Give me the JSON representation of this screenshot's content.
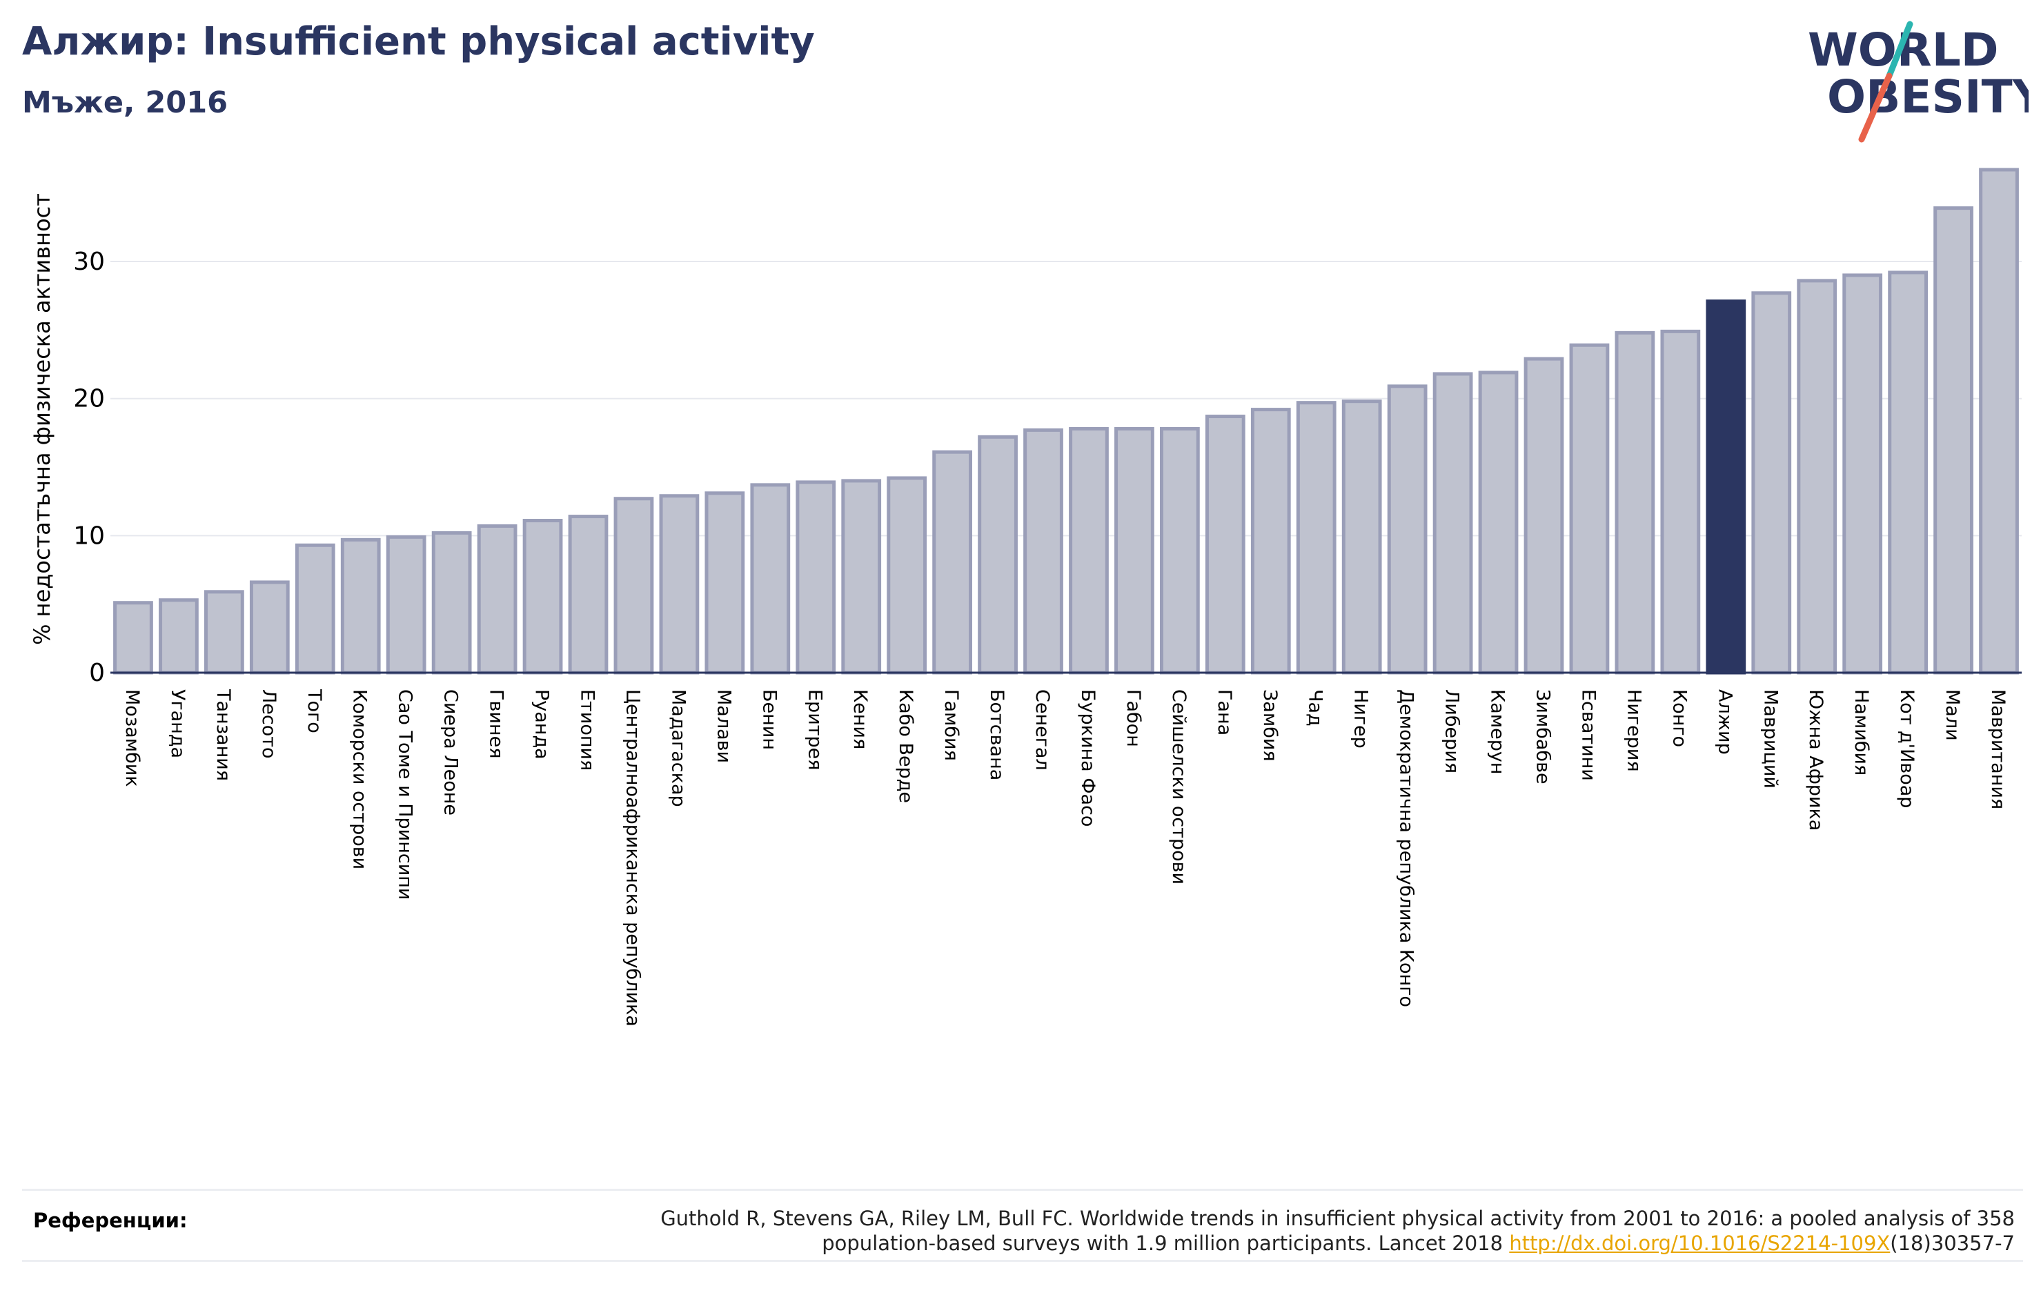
{
  "header": {
    "title": "Алжир: Insufficient physical activity",
    "subtitle": "Мъже, 2016"
  },
  "logo": {
    "line1": "WORLD",
    "line2": "OBESITY"
  },
  "colors": {
    "bar_fill": "#bfc2cf",
    "bar_stroke": "#9a9eb8",
    "highlight": "#2b3661",
    "axis": "#2b3661",
    "grid": "#e6e8ee",
    "logo_text": "#2b3661",
    "logo_teal": "#2bb5b0",
    "logo_red": "#e8624a"
  },
  "chart_data": {
    "type": "bar",
    "ylabel": "% недостатъчна физическа активност",
    "ylim": [
      0,
      37
    ],
    "yticks": [
      0,
      10,
      20,
      30
    ],
    "grid": true,
    "highlight": "Алжир",
    "categories": [
      "Мозамбик",
      "Уганда",
      "Танзания",
      "Лесото",
      "Того",
      "Коморски острови",
      "Сао Томе и Принсипи",
      "Сиера Леоне",
      "Гвинея",
      "Руанда",
      "Етиопия",
      "Централноафриканска република",
      "Мадагаскар",
      "Малави",
      "Бенин",
      "Еритрея",
      "Кения",
      "Кабо Верде",
      "Гамбия",
      "Ботсвана",
      "Сенегал",
      "Буркина Фасо",
      "Габон",
      "Сейшелски острови",
      "Гана",
      "Замбия",
      "Чад",
      "Нигер",
      "Демократична република Конго",
      "Либерия",
      "Камерун",
      "Зимбабве",
      "Есватини",
      "Нигерия",
      "Конго",
      "Алжир",
      "Мавриций",
      "Южна Африка",
      "Намибия",
      "Кот д'Ивоар",
      "Мали",
      "Мавритания"
    ],
    "values": [
      5.1,
      5.3,
      5.9,
      6.6,
      9.3,
      9.7,
      9.9,
      10.2,
      10.7,
      11.1,
      11.4,
      12.7,
      12.9,
      13.1,
      13.7,
      13.9,
      14.0,
      14.2,
      16.1,
      17.2,
      17.7,
      17.8,
      17.8,
      17.8,
      18.7,
      19.2,
      19.7,
      19.8,
      20.9,
      21.8,
      21.9,
      22.9,
      23.9,
      24.8,
      24.9,
      27.1,
      27.7,
      28.6,
      29.0,
      29.2,
      33.9,
      36.7
    ]
  },
  "references": {
    "label": "Референции:",
    "text_line1": "Guthold R, Stevens GA, Riley LM, Bull FC. Worldwide trends in insufficient physical activity from 2001 to 2016: a pooled analysis of 358",
    "text_line2_prefix": "population-based surveys with 1.9 million participants. Lancet 2018 ",
    "link": "http://dx.doi.org/10.1016/S2214-109X",
    "text_line2_suffix": "(18)30357-7"
  }
}
